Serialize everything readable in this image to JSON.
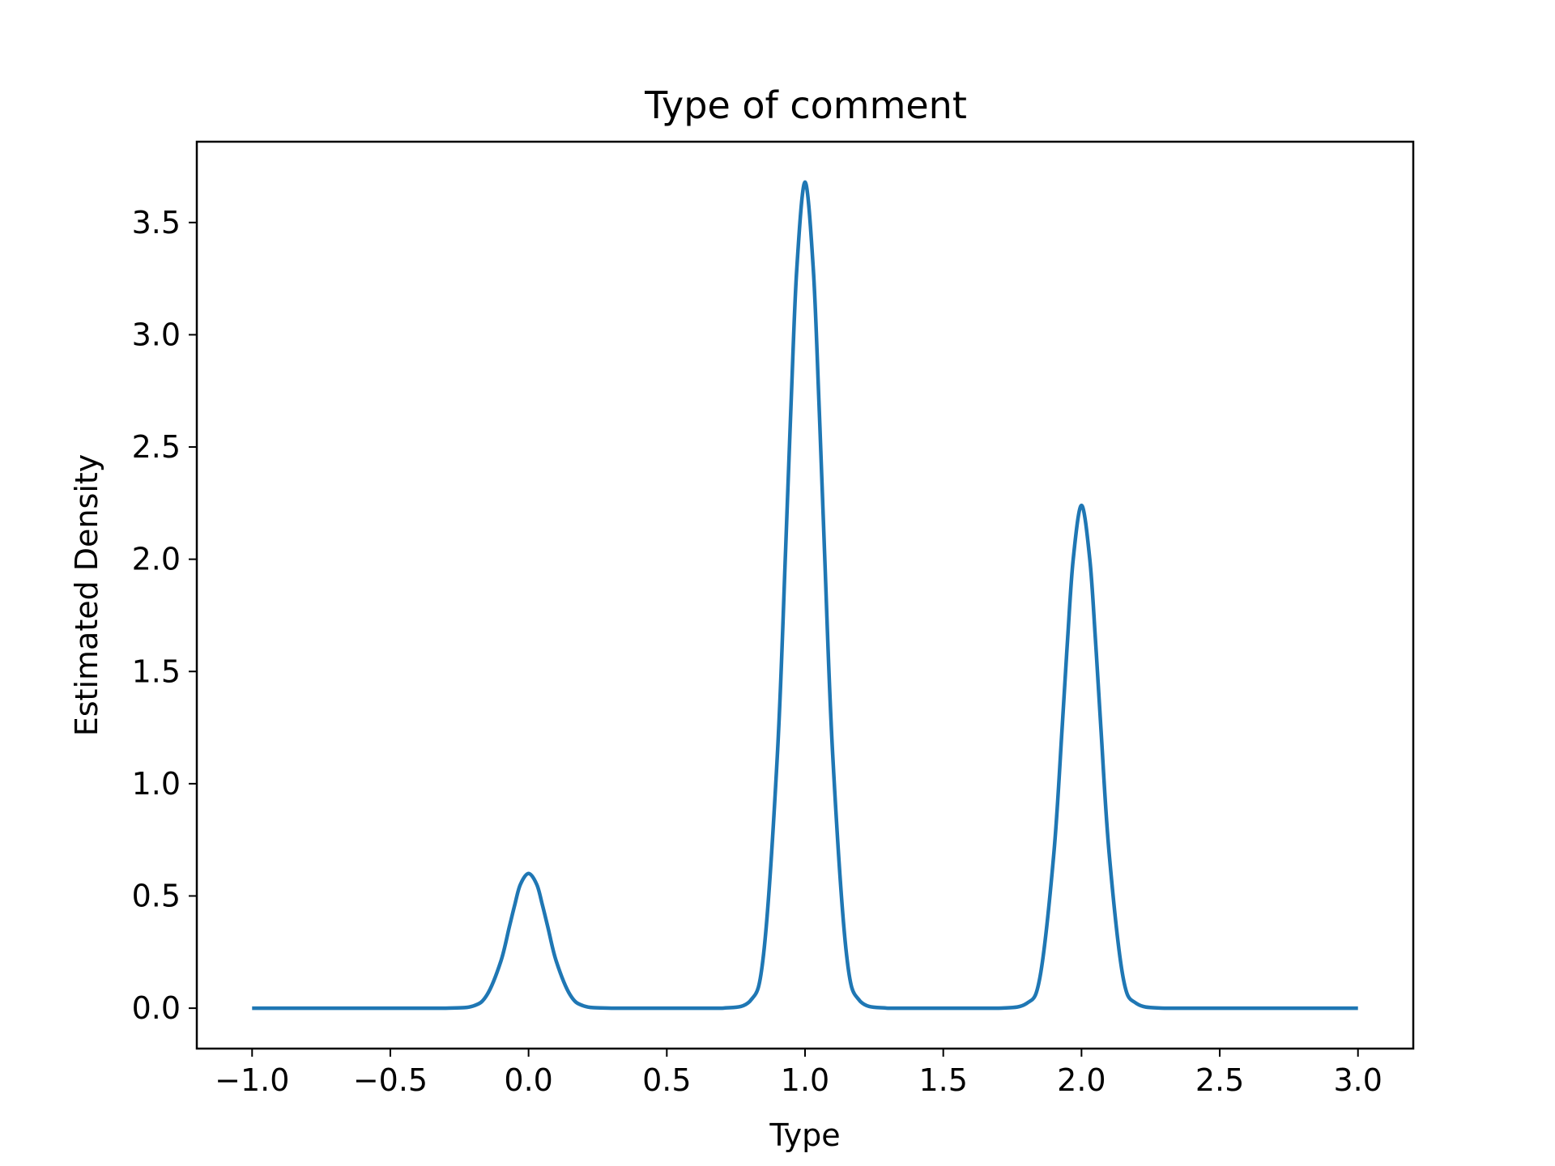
{
  "chart_data": {
    "type": "line",
    "title": "Type of comment",
    "xlabel": "Type",
    "ylabel": "Estimated Density",
    "xlim": [
      -1.2,
      3.2
    ],
    "ylim": [
      -0.18,
      3.86
    ],
    "xticks": [
      -1.0,
      -0.5,
      0.0,
      0.5,
      1.0,
      1.5,
      2.0,
      2.5,
      3.0
    ],
    "xtick_labels": [
      "−1.0",
      "−0.5",
      "0.0",
      "0.5",
      "1.0",
      "1.5",
      "2.0",
      "2.5",
      "3.0"
    ],
    "yticks": [
      0.0,
      0.5,
      1.0,
      1.5,
      2.0,
      2.5,
      3.0,
      3.5
    ],
    "ytick_labels": [
      "0.0",
      "0.5",
      "1.0",
      "1.5",
      "2.0",
      "2.5",
      "3.0",
      "3.5"
    ],
    "grid": false,
    "series": [
      {
        "color": "#1f77b4",
        "x": [
          -1.0,
          -0.5,
          -0.3,
          -0.2,
          -0.15,
          -0.1,
          -0.07,
          -0.05,
          -0.03,
          0.0,
          0.03,
          0.05,
          0.07,
          0.1,
          0.15,
          0.2,
          0.3,
          0.5,
          0.7,
          0.8,
          0.85,
          0.9,
          0.93,
          0.95,
          0.97,
          1.0,
          1.03,
          1.05,
          1.07,
          1.1,
          1.15,
          1.2,
          1.3,
          1.5,
          1.7,
          1.8,
          1.85,
          1.9,
          1.93,
          1.95,
          1.97,
          2.0,
          2.03,
          2.05,
          2.07,
          2.1,
          2.15,
          2.2,
          2.3,
          2.5,
          3.0
        ],
        "y": [
          0.0,
          0.0,
          0.0,
          0.01,
          0.06,
          0.21,
          0.36,
          0.46,
          0.55,
          0.6,
          0.55,
          0.46,
          0.36,
          0.21,
          0.06,
          0.01,
          0.0,
          0.0,
          0.0,
          0.03,
          0.24,
          1.13,
          2.05,
          2.71,
          3.29,
          3.68,
          3.29,
          2.71,
          2.05,
          1.13,
          0.24,
          0.03,
          0.0,
          0.0,
          0.0,
          0.02,
          0.14,
          0.69,
          1.25,
          1.65,
          2.0,
          2.24,
          2.0,
          1.65,
          1.25,
          0.69,
          0.14,
          0.02,
          0.0,
          0.0,
          0.0
        ]
      }
    ]
  }
}
